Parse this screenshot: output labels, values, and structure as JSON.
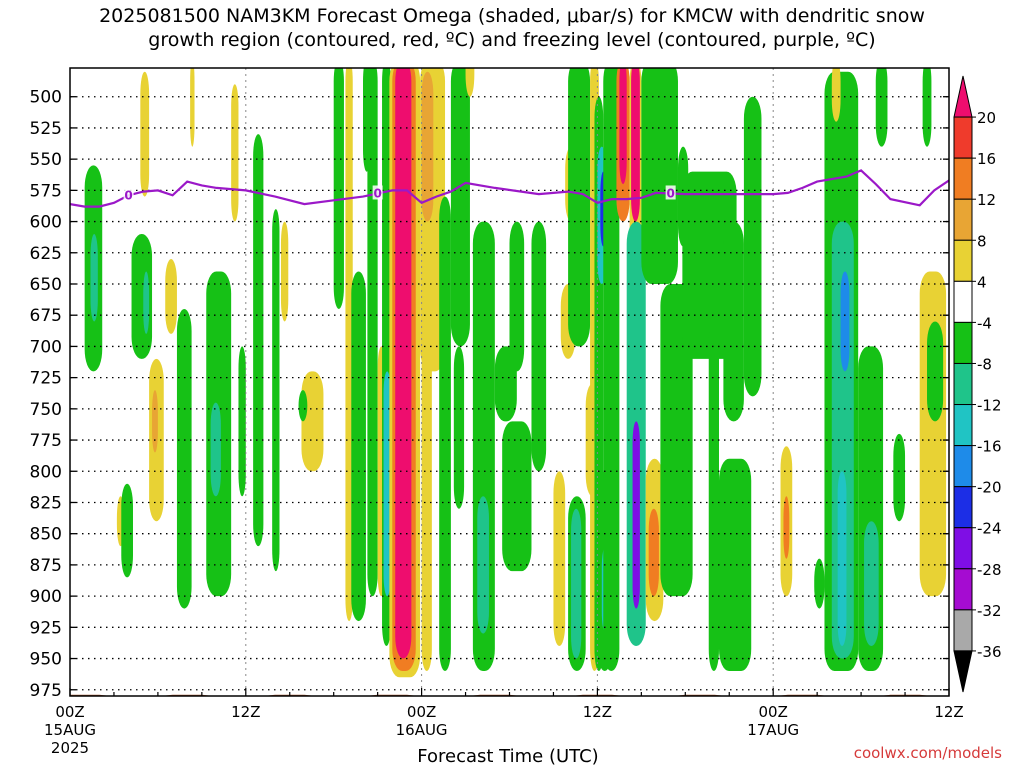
{
  "title_line1": "2025081500 NAM3KM Forecast Omega (shaded, μbar/s) for KMCW with dendritic snow",
  "title_line2": "growth region (contoured, red, ºC) and freezing level (contoured, purple, ºC)",
  "credit": "coolwx.com/models",
  "chart_data": {
    "type": "heatmap",
    "xlabel": "Forecast Time (UTC)",
    "x_range_hours": [
      0,
      60
    ],
    "x_ticks": [
      {
        "hour": 0,
        "label1": "00Z",
        "label2": "15AUG",
        "label3": "2025"
      },
      {
        "hour": 12,
        "label1": "12Z",
        "label2": "",
        "label3": ""
      },
      {
        "hour": 24,
        "label1": "00Z",
        "label2": "16AUG",
        "label3": ""
      },
      {
        "hour": 36,
        "label1": "12Z",
        "label2": "",
        "label3": ""
      },
      {
        "hour": 48,
        "label1": "00Z",
        "label2": "17AUG",
        "label3": ""
      },
      {
        "hour": 60,
        "label1": "12Z",
        "label2": "",
        "label3": ""
      }
    ],
    "y_range_hpa": [
      980,
      477
    ],
    "y_ticks": [
      "500",
      "525",
      "550",
      "575",
      "600",
      "625",
      "650",
      "675",
      "700",
      "725",
      "750",
      "775",
      "800",
      "825",
      "850",
      "875",
      "900",
      "925",
      "950",
      "975"
    ],
    "grid": true,
    "colorbar": {
      "levels": [
        "20",
        "16",
        "12",
        "8",
        "4",
        "-4",
        "-8",
        "-12",
        "-16",
        "-20",
        "-24",
        "-28",
        "-32",
        "-36"
      ],
      "colors": [
        "#ee0d6e",
        "#ef3b2c",
        "#f07d22",
        "#e8a534",
        "#e8d234",
        "#ffffff",
        "#16c116",
        "#1fc48a",
        "#20c4c4",
        "#1e8be9",
        "#1c2ee6",
        "#7f0ee5",
        "#a50cd1",
        "#a9a9a9",
        "#000000"
      ]
    },
    "freezing_level": {
      "label": "0",
      "color": "#9b18c8",
      "points": [
        [
          0,
          586
        ],
        [
          1,
          588
        ],
        [
          2,
          588
        ],
        [
          3,
          585
        ],
        [
          4,
          579
        ],
        [
          5,
          576
        ],
        [
          6,
          575
        ],
        [
          7,
          579
        ],
        [
          8,
          568
        ],
        [
          9,
          571
        ],
        [
          10,
          573
        ],
        [
          12,
          575
        ],
        [
          14,
          580
        ],
        [
          16,
          586
        ],
        [
          18,
          583
        ],
        [
          20,
          580
        ],
        [
          22,
          575
        ],
        [
          23,
          575
        ],
        [
          24,
          585
        ],
        [
          25,
          580
        ],
        [
          26,
          576
        ],
        [
          27,
          569
        ],
        [
          29,
          573
        ],
        [
          32,
          578
        ],
        [
          34,
          576
        ],
        [
          35,
          578
        ],
        [
          36,
          585
        ],
        [
          37,
          582
        ],
        [
          38,
          582
        ],
        [
          39,
          581
        ],
        [
          40,
          577
        ],
        [
          42,
          578
        ],
        [
          44,
          578
        ],
        [
          46,
          578
        ],
        [
          48,
          578
        ],
        [
          49,
          577
        ],
        [
          50,
          573
        ],
        [
          51,
          568
        ],
        [
          53,
          564
        ],
        [
          54,
          559
        ],
        [
          55,
          570
        ],
        [
          56,
          582
        ],
        [
          58,
          587
        ],
        [
          59,
          575
        ],
        [
          60,
          567
        ],
        [
          61,
          566
        ]
      ],
      "label_hours": [
        4,
        21,
        41
      ]
    },
    "omega_cells": [
      {
        "x0": 1.0,
        "x1": 2.2,
        "p0": 555,
        "p1": 720,
        "v": -6
      },
      {
        "x0": 1.4,
        "x1": 1.9,
        "p0": 610,
        "p1": 680,
        "v": -10
      },
      {
        "x0": 3.2,
        "x1": 3.7,
        "p0": 820,
        "p1": 860,
        "v": 6
      },
      {
        "x0": 3.5,
        "x1": 4.3,
        "p0": 810,
        "p1": 885,
        "v": -6
      },
      {
        "x0": 4.8,
        "x1": 5.4,
        "p0": 480,
        "p1": 580,
        "v": 6
      },
      {
        "x0": 4.2,
        "x1": 5.6,
        "p0": 610,
        "p1": 710,
        "v": -6
      },
      {
        "x0": 5.0,
        "x1": 5.4,
        "p0": 640,
        "p1": 690,
        "v": -10
      },
      {
        "x0": 5.4,
        "x1": 6.4,
        "p0": 710,
        "p1": 840,
        "v": 6
      },
      {
        "x0": 5.6,
        "x1": 6.0,
        "p0": 735,
        "p1": 785,
        "v": 10
      },
      {
        "x0": 6.5,
        "x1": 7.3,
        "p0": 630,
        "p1": 690,
        "v": 6
      },
      {
        "x0": 7.3,
        "x1": 8.3,
        "p0": 670,
        "p1": 910,
        "v": -6
      },
      {
        "x0": 8.2,
        "x1": 8.5,
        "p0": 470,
        "p1": 540,
        "v": 6
      },
      {
        "x0": 9.3,
        "x1": 11.0,
        "p0": 640,
        "p1": 900,
        "v": -6
      },
      {
        "x0": 9.6,
        "x1": 10.3,
        "p0": 745,
        "p1": 820,
        "v": -10
      },
      {
        "x0": 11.5,
        "x1": 12.0,
        "p0": 700,
        "p1": 820,
        "v": -6
      },
      {
        "x0": 11.0,
        "x1": 11.5,
        "p0": 490,
        "p1": 600,
        "v": 6
      },
      {
        "x0": 12.5,
        "x1": 13.2,
        "p0": 530,
        "p1": 860,
        "v": -6
      },
      {
        "x0": 13.8,
        "x1": 14.3,
        "p0": 590,
        "p1": 880,
        "v": -6
      },
      {
        "x0": 14.4,
        "x1": 14.9,
        "p0": 600,
        "p1": 680,
        "v": 6
      },
      {
        "x0": 15.8,
        "x1": 17.3,
        "p0": 720,
        "p1": 800,
        "v": 6
      },
      {
        "x0": 15.6,
        "x1": 16.2,
        "p0": 735,
        "p1": 760,
        "v": -6
      },
      {
        "x0": 18.0,
        "x1": 18.7,
        "p0": 470,
        "p1": 670,
        "v": -6
      },
      {
        "x0": 18.8,
        "x1": 19.3,
        "p0": 470,
        "p1": 920,
        "v": 6
      },
      {
        "x0": 19.2,
        "x1": 20.2,
        "p0": 640,
        "p1": 920,
        "v": -6
      },
      {
        "x0": 20.0,
        "x1": 20.5,
        "p0": 470,
        "p1": 560,
        "v": -6
      },
      {
        "x0": 20.3,
        "x1": 21.0,
        "p0": 470,
        "p1": 900,
        "v": -6
      },
      {
        "x0": 21.0,
        "x1": 21.5,
        "p0": 700,
        "p1": 900,
        "v": 6
      },
      {
        "x0": 21.3,
        "x1": 21.9,
        "p0": 470,
        "p1": 940,
        "v": -6
      },
      {
        "x0": 21.4,
        "x1": 21.9,
        "p0": 720,
        "p1": 900,
        "v": -12
      },
      {
        "x0": 21.8,
        "x1": 23.9,
        "p0": 470,
        "p1": 965,
        "v": 6
      },
      {
        "x0": 22.0,
        "x1": 23.6,
        "p0": 470,
        "p1": 960,
        "v": 14
      },
      {
        "x0": 22.2,
        "x1": 23.3,
        "p0": 470,
        "p1": 950,
        "v": 20
      },
      {
        "x0": 23.9,
        "x1": 25.6,
        "p0": 470,
        "p1": 720,
        "v": 6
      },
      {
        "x0": 24.0,
        "x1": 24.8,
        "p0": 480,
        "p1": 600,
        "v": 10
      },
      {
        "x0": 24.0,
        "x1": 24.7,
        "p0": 620,
        "p1": 960,
        "v": 6
      },
      {
        "x0": 25.2,
        "x1": 26.0,
        "p0": 580,
        "p1": 960,
        "v": -6
      },
      {
        "x0": 26.0,
        "x1": 27.3,
        "p0": 470,
        "p1": 700,
        "v": -6
      },
      {
        "x0": 26.2,
        "x1": 26.9,
        "p0": 700,
        "p1": 830,
        "v": -6
      },
      {
        "x0": 27.0,
        "x1": 27.6,
        "p0": 460,
        "p1": 500,
        "v": 6
      },
      {
        "x0": 27.5,
        "x1": 29.0,
        "p0": 600,
        "p1": 960,
        "v": -6
      },
      {
        "x0": 27.8,
        "x1": 28.6,
        "p0": 820,
        "p1": 930,
        "v": -10
      },
      {
        "x0": 29.0,
        "x1": 30.5,
        "p0": 700,
        "p1": 760,
        "v": -6
      },
      {
        "x0": 29.5,
        "x1": 31.5,
        "p0": 760,
        "p1": 880,
        "v": -6
      },
      {
        "x0": 30.0,
        "x1": 31.0,
        "p0": 600,
        "p1": 720,
        "v": -6
      },
      {
        "x0": 31.5,
        "x1": 32.5,
        "p0": 600,
        "p1": 800,
        "v": -6
      },
      {
        "x0": 33.0,
        "x1": 33.8,
        "p0": 800,
        "p1": 940,
        "v": 6
      },
      {
        "x0": 33.5,
        "x1": 34.5,
        "p0": 650,
        "p1": 710,
        "v": 6
      },
      {
        "x0": 33.8,
        "x1": 34.6,
        "p0": 540,
        "p1": 600,
        "v": 6
      },
      {
        "x0": 34.0,
        "x1": 35.5,
        "p0": 470,
        "p1": 700,
        "v": -6
      },
      {
        "x0": 34.0,
        "x1": 35.2,
        "p0": 820,
        "p1": 960,
        "v": -6
      },
      {
        "x0": 34.2,
        "x1": 34.9,
        "p0": 830,
        "p1": 950,
        "v": -10
      },
      {
        "x0": 35.5,
        "x1": 36.1,
        "p0": 470,
        "p1": 960,
        "v": 6
      },
      {
        "x0": 35.2,
        "x1": 36.1,
        "p0": 730,
        "p1": 820,
        "v": 6
      },
      {
        "x0": 35.8,
        "x1": 36.4,
        "p0": 500,
        "p1": 960,
        "v": -6
      },
      {
        "x0": 36.0,
        "x1": 36.6,
        "p0": 540,
        "p1": 650,
        "v": -12
      },
      {
        "x0": 36.2,
        "x1": 36.6,
        "p0": 560,
        "p1": 620,
        "v": -20
      },
      {
        "x0": 36.0,
        "x1": 37.0,
        "p0": 800,
        "p1": 960,
        "v": -6
      },
      {
        "x0": 36.3,
        "x1": 36.8,
        "p0": 860,
        "p1": 930,
        "v": -14
      },
      {
        "x0": 36.4,
        "x1": 37.5,
        "p0": 470,
        "p1": 960,
        "v": -6
      },
      {
        "x0": 37.3,
        "x1": 38.2,
        "p0": 470,
        "p1": 600,
        "v": 12
      },
      {
        "x0": 37.5,
        "x1": 38.0,
        "p0": 470,
        "p1": 570,
        "v": 20
      },
      {
        "x0": 38.2,
        "x1": 39.0,
        "p0": 470,
        "p1": 700,
        "v": 6
      },
      {
        "x0": 38.3,
        "x1": 38.9,
        "p0": 470,
        "p1": 600,
        "v": 20
      },
      {
        "x0": 38.0,
        "x1": 39.3,
        "p0": 600,
        "p1": 940,
        "v": -10
      },
      {
        "x0": 38.4,
        "x1": 38.9,
        "p0": 760,
        "p1": 910,
        "v": -24
      },
      {
        "x0": 39.3,
        "x1": 40.5,
        "p0": 790,
        "p1": 920,
        "v": 6
      },
      {
        "x0": 39.5,
        "x1": 40.2,
        "p0": 830,
        "p1": 900,
        "v": 14
      },
      {
        "x0": 39.0,
        "x1": 41.5,
        "p0": 470,
        "p1": 650,
        "v": -6
      },
      {
        "x0": 39.2,
        "x1": 40.0,
        "p0": 470,
        "p1": 560,
        "v": -6
      },
      {
        "x0": 41.5,
        "x1": 42.2,
        "p0": 540,
        "p1": 620,
        "v": -6
      },
      {
        "x0": 40.3,
        "x1": 42.5,
        "p0": 650,
        "p1": 900,
        "v": -6
      },
      {
        "x0": 41.8,
        "x1": 45.5,
        "p0": 560,
        "p1": 710,
        "v": -6
      },
      {
        "x0": 43.6,
        "x1": 44.3,
        "p0": 680,
        "p1": 960,
        "v": -6
      },
      {
        "x0": 44.3,
        "x1": 46.5,
        "p0": 790,
        "p1": 960,
        "v": -6
      },
      {
        "x0": 44.6,
        "x1": 46.0,
        "p0": 600,
        "p1": 760,
        "v": -6
      },
      {
        "x0": 46.0,
        "x1": 47.2,
        "p0": 500,
        "p1": 740,
        "v": -6
      },
      {
        "x0": 48.5,
        "x1": 49.3,
        "p0": 780,
        "p1": 900,
        "v": 6
      },
      {
        "x0": 48.7,
        "x1": 49.1,
        "p0": 820,
        "p1": 870,
        "v": 12
      },
      {
        "x0": 50.8,
        "x1": 51.5,
        "p0": 870,
        "p1": 910,
        "v": -6
      },
      {
        "x0": 51.5,
        "x1": 53.8,
        "p0": 480,
        "p1": 960,
        "v": -6
      },
      {
        "x0": 52.0,
        "x1": 53.5,
        "p0": 600,
        "p1": 950,
        "v": -10
      },
      {
        "x0": 52.6,
        "x1": 53.2,
        "p0": 640,
        "p1": 720,
        "v": -16
      },
      {
        "x0": 52.4,
        "x1": 53.0,
        "p0": 800,
        "p1": 940,
        "v": -14
      },
      {
        "x0": 52.0,
        "x1": 52.6,
        "p0": 470,
        "p1": 520,
        "v": 6
      },
      {
        "x0": 53.8,
        "x1": 55.5,
        "p0": 700,
        "p1": 960,
        "v": -6
      },
      {
        "x0": 54.2,
        "x1": 55.2,
        "p0": 840,
        "p1": 940,
        "v": -10
      },
      {
        "x0": 55.0,
        "x1": 55.8,
        "p0": 470,
        "p1": 540,
        "v": -6
      },
      {
        "x0": 56.2,
        "x1": 57.0,
        "p0": 770,
        "p1": 840,
        "v": -6
      },
      {
        "x0": 58.0,
        "x1": 59.8,
        "p0": 640,
        "p1": 900,
        "v": 6
      },
      {
        "x0": 58.5,
        "x1": 59.6,
        "p0": 680,
        "p1": 760,
        "v": -6
      },
      {
        "x0": 58.2,
        "x1": 58.8,
        "p0": 470,
        "p1": 540,
        "v": -6
      }
    ],
    "terrain": {
      "surface_hpa": 979,
      "color": "#a0522d"
    }
  }
}
